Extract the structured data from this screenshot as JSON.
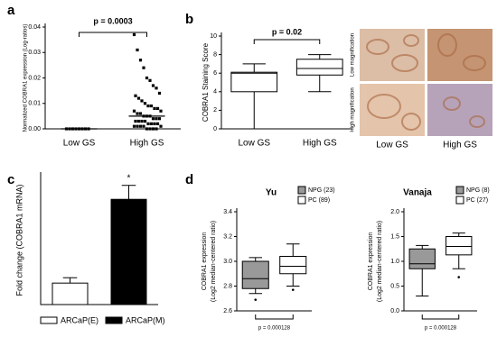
{
  "chart_data": [
    {
      "type": "dotplot",
      "panel": "a",
      "ylabel": "Normalized COBRA1 expression (Log-ratios)",
      "categories": [
        "Low GS",
        "High GS"
      ],
      "values": [
        [
          0,
          0,
          0,
          0,
          0,
          0,
          0,
          0
        ],
        [
          0.037,
          0.031,
          0.027,
          0.024,
          0.02,
          0.019,
          0.017,
          0.016,
          0.014,
          0.013,
          0.012,
          0.011,
          0.01,
          0.009,
          0.009,
          0.008,
          0.008,
          0.007,
          0.007,
          0.006,
          0.006,
          0.005,
          0.005,
          0.005,
          0.004,
          0.004,
          0.004,
          0.003,
          0.003,
          0.003,
          0.003,
          0.002,
          0.002,
          0.002,
          0.002,
          0.001,
          0.001,
          0.001,
          0.001,
          0.001,
          0,
          0,
          0,
          0
        ]
      ],
      "means": [
        0,
        0.005
      ],
      "color": "#000000",
      "ylim": [
        0,
        0.04
      ],
      "yticks": [
        {
          "value": 0,
          "label": "0.00"
        },
        {
          "value": 0.01,
          "label": "0.01"
        },
        {
          "value": 0.02,
          "label": "0.02"
        },
        {
          "value": 0.03,
          "label": "0.03"
        },
        {
          "value": 0.04,
          "label": "0.04"
        }
      ],
      "annotation": "p = 0.0003"
    },
    {
      "type": "box",
      "panel": "b",
      "ylabel": "COBRA1 Staining Score",
      "categories": [
        "Low GS",
        "High GS"
      ],
      "series": [
        {
          "color": "#ffffff",
          "min": 0,
          "q1": 4,
          "median": 6,
          "q3": 6.1,
          "max": 7,
          "outliers": []
        },
        {
          "color": "#ffffff",
          "min": 4,
          "q1": 5.8,
          "median": 6.5,
          "q3": 7.5,
          "max": 8,
          "outliers": []
        }
      ],
      "ylim": [
        0,
        10
      ],
      "yticks": [
        0,
        2,
        4,
        6,
        8,
        10
      ],
      "annotation": "p = 0.02"
    },
    {
      "type": "bar",
      "panel": "c",
      "ylabel": "Fold change (COBRA1 mRNA)",
      "series": [
        {
          "name": "ARCaP(E)",
          "color": "#ffffff",
          "values": [
            1.0
          ],
          "errors": [
            0.25
          ]
        },
        {
          "name": "ARCaP(M)",
          "color": "#000000",
          "values": [
            4.9
          ],
          "errors": [
            0.65
          ]
        }
      ],
      "ylim": [
        0,
        6
      ],
      "annotation": "*"
    },
    {
      "type": "box",
      "panel": "d",
      "title": "Yu",
      "ylabel": [
        "COBRA1 expression",
        "(Log2 median-centered ratio)"
      ],
      "series": [
        {
          "name": "NPG (23)",
          "color": "#999999",
          "min": 2.74,
          "q1": 2.78,
          "median": 2.86,
          "q3": 3.0,
          "max": 3.03,
          "outliers": [
            2.69
          ]
        },
        {
          "name": "PC (89)",
          "color": "#ffffff",
          "min": 2.8,
          "q1": 2.9,
          "median": 2.96,
          "q3": 3.04,
          "max": 3.14,
          "outliers": [
            2.77
          ]
        }
      ],
      "ylim": [
        2.6,
        3.4
      ],
      "yticks": [
        2.6,
        2.8,
        {
          "value": 3,
          "label": "3.0"
        },
        3.2,
        3.4
      ],
      "annotation": "p = 0.000128"
    },
    {
      "type": "box",
      "title": "Vanaja",
      "ylabel": [
        "COBRA1 expression",
        "(Log2 median-centered ratio)"
      ],
      "series": [
        {
          "name": "NPG (8)",
          "color": "#999999",
          "min": 0.3,
          "q1": 0.85,
          "median": 0.95,
          "q3": 1.25,
          "max": 1.32,
          "outliers": []
        },
        {
          "name": "PC (27)",
          "color": "#ffffff",
          "min": 0.85,
          "q1": 1.13,
          "median": 1.3,
          "q3": 1.5,
          "max": 1.57,
          "outliers": [
            0.68
          ]
        }
      ],
      "ylim": [
        0,
        2
      ],
      "yticks": [
        {
          "value": 0,
          "label": "0.0"
        },
        0.5,
        {
          "value": 1,
          "label": "1.0"
        },
        1.5,
        {
          "value": 2,
          "label": "2.0"
        }
      ],
      "annotation": "p = 0.000128"
    }
  ],
  "micrographs": {
    "row_labels": [
      "Low magnification",
      "High magnification"
    ],
    "column_labels": [
      "Low GS",
      "High GS"
    ]
  }
}
